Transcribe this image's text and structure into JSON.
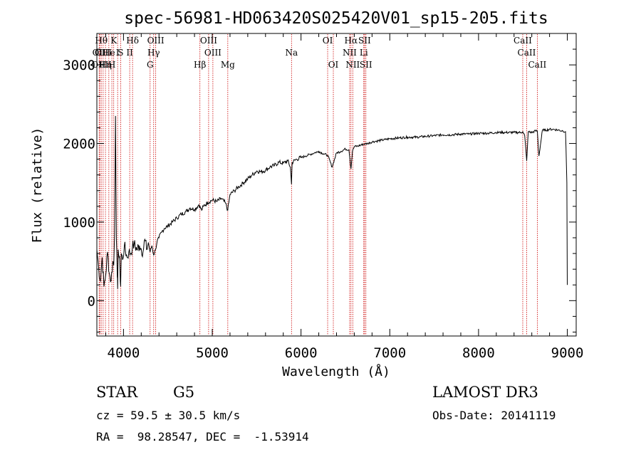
{
  "chart_data": {
    "type": "line",
    "title": "spec-56981-HD063420S025420V01_sp15-205.fits",
    "xlabel": "Wavelength (Å)",
    "ylabel": "Flux (relative)",
    "xlim": [
      3700,
      9100
    ],
    "ylim": [
      -450,
      3400
    ],
    "x_ticks": [
      4000,
      5000,
      6000,
      7000,
      8000,
      9000
    ],
    "y_ticks": [
      0,
      1000,
      2000,
      3000
    ],
    "grid": false,
    "series": [
      {
        "x": [
          3700,
          3720,
          3740,
          3760,
          3780,
          3800,
          3820,
          3840,
          3860,
          3880,
          3890,
          3900,
          3910,
          3920,
          3930,
          3934,
          3940,
          3950,
          3960,
          3968,
          3975,
          3990,
          4010,
          4040,
          4060,
          4080,
          4100,
          4120,
          4150,
          4180,
          4200,
          4220,
          4240,
          4260,
          4280,
          4300,
          4320,
          4340,
          4360,
          4380,
          4400,
          4430,
          4460,
          4500,
          4550,
          4600,
          4650,
          4700,
          4750,
          4800,
          4850,
          4880,
          4900,
          4950,
          5000,
          5050,
          5100,
          5150,
          5175,
          5200,
          5250,
          5300,
          5350,
          5400,
          5450,
          5500,
          5550,
          5600,
          5650,
          5700,
          5750,
          5800,
          5850,
          5880,
          5893,
          5900,
          5950,
          6000,
          6050,
          6100,
          6150,
          6200,
          6250,
          6300,
          6350,
          6400,
          6450,
          6500,
          6540,
          6563,
          6580,
          6600,
          6650,
          6700,
          6750,
          6800,
          6850,
          6900,
          6950,
          7000,
          7100,
          7200,
          7300,
          7400,
          7500,
          7600,
          7700,
          7800,
          7900,
          8000,
          8100,
          8200,
          8300,
          8400,
          8480,
          8498,
          8520,
          8542,
          8560,
          8600,
          8640,
          8662,
          8680,
          8720,
          8760,
          8800,
          8850,
          8900,
          8950,
          8980,
          8995,
          9000
        ],
        "y": [
          650,
          420,
          250,
          550,
          180,
          330,
          620,
          350,
          250,
          500,
          450,
          850,
          2350,
          780,
          300,
          150,
          650,
          550,
          420,
          180,
          600,
          520,
          700,
          550,
          620,
          600,
          680,
          720,
          650,
          700,
          660,
          620,
          780,
          650,
          740,
          620,
          700,
          580,
          650,
          760,
          800,
          870,
          920,
          950,
          1000,
          1050,
          1100,
          1130,
          1180,
          1160,
          1220,
          1150,
          1200,
          1250,
          1280,
          1260,
          1300,
          1240,
          1150,
          1350,
          1400,
          1450,
          1500,
          1550,
          1600,
          1650,
          1640,
          1660,
          1700,
          1720,
          1760,
          1750,
          1780,
          1700,
          1480,
          1760,
          1800,
          1820,
          1840,
          1860,
          1880,
          1900,
          1870,
          1850,
          1700,
          1880,
          1900,
          1930,
          1920,
          1680,
          1900,
          1960,
          1970,
          1990,
          2000,
          2020,
          2030,
          2040,
          2050,
          2060,
          2070,
          2080,
          2080,
          2090,
          2100,
          2110,
          2110,
          2120,
          2120,
          2130,
          2130,
          2140,
          2140,
          2140,
          2140,
          2150,
          2100,
          1780,
          2150,
          2140,
          2160,
          2160,
          1840,
          2170,
          2170,
          2180,
          2180,
          2170,
          2160,
          2150,
          1500,
          200
        ]
      }
    ],
    "line_markers": [
      {
        "wl": 3726,
        "row": 1,
        "label": "OII"
      },
      {
        "wl": 3734,
        "row": 2,
        "label": "OIII"
      },
      {
        "wl": 3750,
        "row": 0,
        "label": "Hθ"
      },
      {
        "wl": 3771,
        "row": 1,
        "label": "OIII"
      },
      {
        "wl": 3797,
        "row": 2,
        "label": "Hη"
      },
      {
        "wl": 3835,
        "row": 1,
        "label": "He"
      },
      {
        "wl": 3869,
        "row": 2,
        "label": "H"
      },
      {
        "wl": 3890,
        "row": 0,
        "label": "K"
      },
      {
        "wl": 3934,
        "row": 1,
        "label": "I"
      },
      {
        "wl": 3968,
        "row": 1,
        "label": "S"
      },
      {
        "wl": 4070,
        "row": 1,
        "label": "II"
      },
      {
        "wl": 4102,
        "row": 0,
        "label": "Hδ"
      },
      {
        "wl": 4300,
        "row": 2,
        "label": "G"
      },
      {
        "wl": 4340,
        "row": 1,
        "label": "Hγ"
      },
      {
        "wl": 4363,
        "row": 0,
        "label": "OIII"
      },
      {
        "wl": 4861,
        "row": 2,
        "label": "Hβ"
      },
      {
        "wl": 4959,
        "row": 0,
        "label": "OIII"
      },
      {
        "wl": 5007,
        "row": 1,
        "label": "OIII"
      },
      {
        "wl": 5175,
        "row": 2,
        "label": "Mg"
      },
      {
        "wl": 5893,
        "row": 1,
        "label": "Na"
      },
      {
        "wl": 6300,
        "row": 0,
        "label": "OI"
      },
      {
        "wl": 6364,
        "row": 2,
        "label": "OI"
      },
      {
        "wl": 6548,
        "row": 1,
        "label": "NII"
      },
      {
        "wl": 6563,
        "row": 0,
        "label": "Hα"
      },
      {
        "wl": 6583,
        "row": 2,
        "label": "NII"
      },
      {
        "wl": 6707,
        "row": 1,
        "label": "Li"
      },
      {
        "wl": 6716,
        "row": 0,
        "label": "SII"
      },
      {
        "wl": 6731,
        "row": 2,
        "label": "SII"
      },
      {
        "wl": 8498,
        "row": 0,
        "label": "CaII"
      },
      {
        "wl": 8542,
        "row": 1,
        "label": "CaII"
      },
      {
        "wl": 8662,
        "row": 2,
        "label": "CaII"
      }
    ]
  },
  "info": {
    "obj_class": "STAR",
    "subclass": "G5",
    "survey": "LAMOST DR3",
    "redshift": "cz = 59.5 ± 30.5 km/s",
    "obs_date": "Obs-Date: 20141119",
    "coords": "RA =  98.28547, DEC =  -1.53914"
  },
  "colors": {
    "spectrum": "#000000",
    "line_marker": "#cc0000",
    "frame": "#000000"
  }
}
